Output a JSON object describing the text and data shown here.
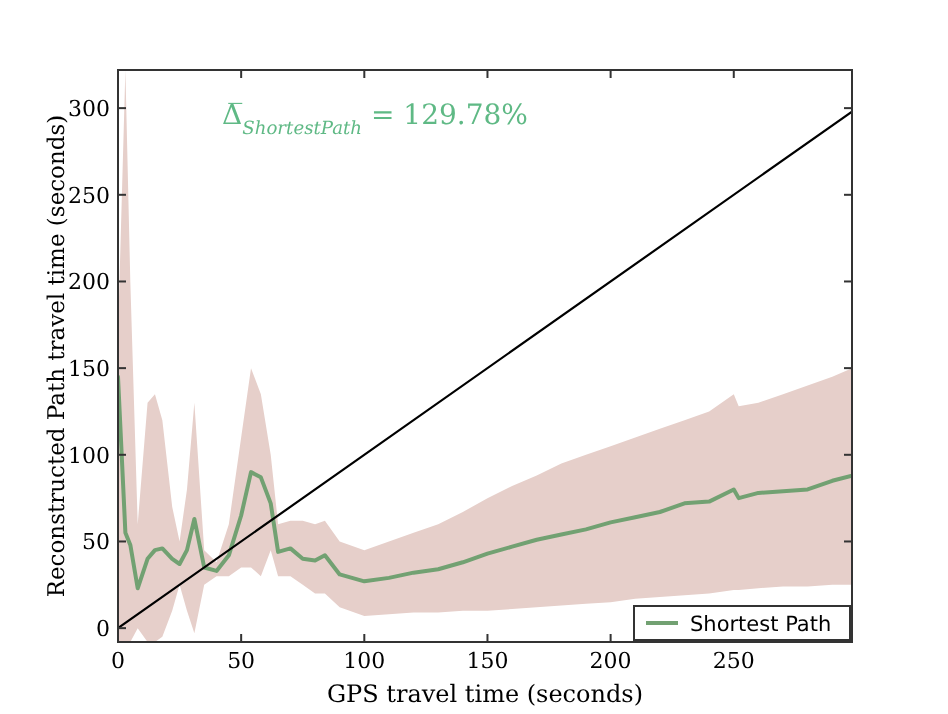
{
  "chart_data": {
    "type": "line",
    "xlabel": "GPS travel time (seconds)",
    "ylabel": "Reconstructed Path travel time (seconds)",
    "annotations": [
      "Δ̅$_{ShortestPath}$ = 129.78%"
    ],
    "xlim": [
      0,
      298
    ],
    "ylim": [
      -8,
      322
    ],
    "xticks": [
      0,
      50,
      100,
      150,
      200,
      250
    ],
    "yticks": [
      0,
      50,
      100,
      150,
      200,
      250,
      300
    ],
    "grid": false,
    "legend": "bottom right",
    "series": [
      {
        "name": "Shortest Path",
        "color": "#72a172",
        "x": [
          0,
          3,
          5,
          8,
          12,
          15,
          18,
          22,
          25,
          28,
          31,
          35,
          40,
          45,
          50,
          54,
          58,
          62,
          65,
          70,
          75,
          80,
          84,
          90,
          100,
          110,
          120,
          130,
          140,
          150,
          160,
          170,
          180,
          190,
          200,
          210,
          220,
          230,
          240,
          250,
          252,
          260,
          270,
          280,
          290,
          298
        ],
        "values": [
          145,
          55,
          48,
          23,
          40,
          45,
          46,
          40,
          37,
          45,
          63,
          35,
          33,
          42,
          65,
          90,
          87,
          72,
          44,
          46,
          40,
          39,
          42,
          31,
          27,
          29,
          32,
          34,
          38,
          43,
          47,
          51,
          54,
          57,
          61,
          64,
          67,
          72,
          73,
          80,
          75,
          78,
          79,
          80,
          85,
          88
        ],
        "upper": [
          170,
          322,
          200,
          60,
          130,
          135,
          120,
          70,
          50,
          80,
          130,
          45,
          38,
          60,
          110,
          150,
          135,
          100,
          60,
          62,
          62,
          60,
          62,
          50,
          45,
          50,
          55,
          60,
          67,
          75,
          82,
          88,
          95,
          100,
          105,
          110,
          115,
          120,
          125,
          135,
          128,
          130,
          135,
          140,
          145,
          150
        ],
        "lower": [
          -8,
          -8,
          -8,
          0,
          -8,
          -8,
          -5,
          10,
          25,
          10,
          -3,
          25,
          30,
          30,
          35,
          35,
          30,
          45,
          30,
          30,
          25,
          20,
          20,
          12,
          7,
          8,
          9,
          9,
          10,
          10,
          11,
          12,
          13,
          14,
          15,
          17,
          18,
          19,
          20,
          22,
          22,
          23,
          24,
          24,
          25,
          25
        ]
      },
      {
        "color": "#000000",
        "x": [
          0,
          298
        ],
        "values": [
          0,
          298
        ]
      }
    ]
  }
}
